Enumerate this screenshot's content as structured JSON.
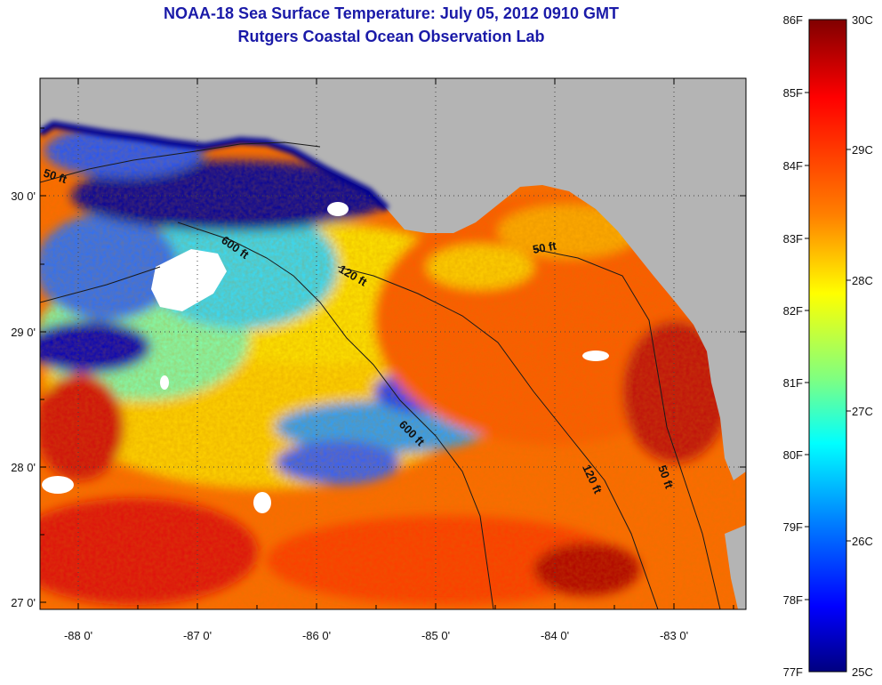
{
  "header": {
    "title_line1": "NOAA-18 Sea Surface Temperature:  July 05, 2012 0910 GMT",
    "title_line2": "Rutgers Coastal Ocean Observation Lab"
  },
  "map": {
    "lon_labels": [
      "-88 0'",
      "-87 0'",
      "-86 0'",
      "-85 0'",
      "-84 0'",
      "-83 0'"
    ],
    "lat_labels": [
      "30 0'",
      "29 0'",
      "28 0'",
      "27 0'"
    ],
    "contour_labels": [
      "50 ft",
      "600 ft",
      "120 ft",
      "50 ft",
      "600 ft",
      "120 ft",
      "50 ft"
    ],
    "land_color": "#b4b4b4",
    "no_data_color": "#ffffff"
  },
  "colorbar": {
    "fahrenheit_labels": [
      "86F",
      "85F",
      "84F",
      "83F",
      "82F",
      "81F",
      "80F",
      "79F",
      "78F",
      "77F"
    ],
    "celsius_labels": [
      "30C",
      "29C",
      "28C",
      "27C",
      "26C",
      "25C"
    ],
    "colors": [
      "#800000",
      "#ff0000",
      "#ff8000",
      "#ffff00",
      "#80ff80",
      "#00ffff",
      "#0080ff",
      "#0000ff",
      "#000080"
    ]
  }
}
